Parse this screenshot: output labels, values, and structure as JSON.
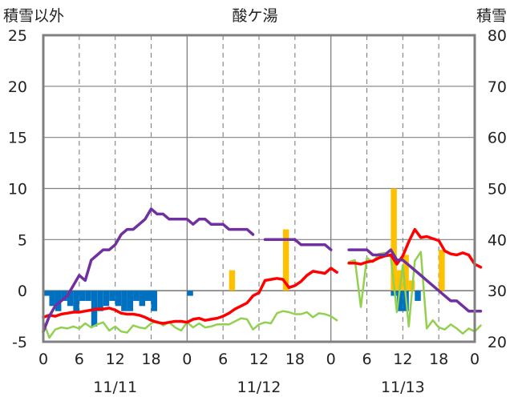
{
  "chart_data": {
    "type": "combo",
    "title": "酸ケ湯",
    "left_axis_label": "積雪以外",
    "right_axis_label": "積雪",
    "left_ylim": [
      -5,
      25
    ],
    "left_ticks": [
      "-5",
      "0",
      "5",
      "10",
      "15",
      "20",
      "25"
    ],
    "right_ylim": [
      20,
      80
    ],
    "right_ticks": [
      "20",
      "30",
      "40",
      "50",
      "60",
      "70",
      "80"
    ],
    "x_hours_range": [
      0,
      72
    ],
    "x_tick_labels": [
      "0",
      "6",
      "12",
      "18",
      "0",
      "6",
      "12",
      "18",
      "0",
      "6",
      "12",
      "18",
      "0"
    ],
    "date_labels": [
      "11/11",
      "11/12",
      "11/13"
    ],
    "grid": true,
    "colors": {
      "temperature": "#ff0000",
      "snow_depth": "#7030a0",
      "temp_diff": "#92d050",
      "precipitation": "#ffc000",
      "snow_change": "#0070c0",
      "axis": "#808080",
      "grid": "#808080"
    },
    "series": [
      {
        "key": "temperature",
        "axis": "left",
        "style": "line",
        "points": [
          [
            0,
            -2.6
          ],
          [
            1,
            -2.4
          ],
          [
            2,
            -2.5
          ],
          [
            3,
            -2.3
          ],
          [
            4,
            -2.2
          ],
          [
            5,
            -2.1
          ],
          [
            6,
            -2.1
          ],
          [
            7,
            -2.0
          ],
          [
            8,
            -1.9
          ],
          [
            9,
            -1.8
          ],
          [
            10,
            -1.8
          ],
          [
            11,
            -1.7
          ],
          [
            12,
            -1.9
          ],
          [
            13,
            -2.2
          ],
          [
            14,
            -2.3
          ],
          [
            15,
            -2.3
          ],
          [
            16,
            -2.4
          ],
          [
            17,
            -2.6
          ],
          [
            18,
            -2.9
          ],
          [
            19,
            -3.1
          ],
          [
            20,
            -3.2
          ],
          [
            21,
            -3.1
          ],
          [
            22,
            -3.0
          ],
          [
            23,
            -3.0
          ],
          [
            24,
            -3.1
          ],
          [
            25,
            -2.8
          ],
          [
            26,
            -2.7
          ],
          [
            27,
            -2.9
          ],
          [
            28,
            -2.8
          ],
          [
            29,
            -2.7
          ],
          [
            30,
            -2.5
          ],
          [
            31,
            -2.2
          ],
          [
            32,
            -1.8
          ],
          [
            33,
            -1.5
          ],
          [
            34,
            -1.2
          ],
          [
            35,
            -0.5
          ],
          [
            36,
            -0.2
          ],
          [
            37,
            1.0
          ],
          [
            38,
            1.1
          ],
          [
            39,
            1.2
          ],
          [
            40,
            1.1
          ],
          [
            41,
            0.3
          ],
          [
            42,
            0.5
          ],
          [
            43,
            0.9
          ],
          [
            44,
            1.5
          ],
          [
            45,
            1.9
          ],
          [
            46,
            1.8
          ],
          [
            47,
            1.7
          ],
          [
            48,
            2.2
          ],
          [
            49,
            1.8
          ],
          null,
          [
            51,
            2.7
          ],
          [
            52,
            2.7
          ],
          [
            53,
            2.6
          ],
          [
            54,
            2.8
          ],
          [
            55,
            2.9
          ],
          [
            56,
            3.2
          ],
          [
            57,
            3.4
          ],
          [
            58,
            3.5
          ],
          [
            59,
            2.6
          ],
          [
            60,
            3.4
          ],
          [
            61,
            4.8
          ],
          [
            62,
            6.0
          ],
          [
            63,
            5.2
          ],
          [
            64,
            5.3
          ],
          [
            65,
            5.1
          ],
          [
            66,
            4.9
          ],
          [
            67,
            3.9
          ],
          [
            68,
            3.6
          ],
          [
            69,
            3.5
          ],
          [
            70,
            3.7
          ],
          [
            71,
            3.5
          ],
          [
            72,
            2.6
          ],
          [
            73,
            2.3
          ]
        ]
      },
      {
        "key": "snow_depth",
        "axis": "right",
        "style": "line",
        "points": [
          [
            0,
            22
          ],
          [
            1,
            25
          ],
          [
            2,
            27
          ],
          [
            3,
            28
          ],
          [
            4,
            29
          ],
          [
            5,
            31
          ],
          [
            6,
            33
          ],
          [
            7,
            32
          ],
          [
            8,
            36
          ],
          [
            9,
            37
          ],
          [
            10,
            38
          ],
          [
            11,
            38
          ],
          [
            12,
            39
          ],
          [
            13,
            41
          ],
          [
            14,
            42
          ],
          [
            15,
            42
          ],
          [
            16,
            43
          ],
          [
            17,
            44
          ],
          [
            18,
            46
          ],
          [
            19,
            45
          ],
          [
            20,
            45
          ],
          [
            21,
            44
          ],
          [
            22,
            44
          ],
          [
            23,
            44
          ],
          [
            24,
            44
          ],
          [
            25,
            43
          ],
          [
            26,
            44
          ],
          [
            27,
            44
          ],
          [
            28,
            43
          ],
          [
            29,
            43
          ],
          [
            30,
            43
          ],
          [
            31,
            42
          ],
          [
            32,
            42
          ],
          [
            33,
            42
          ],
          [
            34,
            42
          ],
          [
            35,
            41
          ],
          null,
          [
            37,
            40
          ],
          [
            38,
            40
          ],
          [
            39,
            40
          ],
          [
            40,
            40
          ],
          [
            41,
            40
          ],
          [
            42,
            40
          ],
          [
            43,
            39
          ],
          [
            44,
            39
          ],
          [
            45,
            39
          ],
          [
            46,
            39
          ],
          [
            47,
            39
          ],
          [
            48,
            38
          ],
          null,
          [
            51,
            38
          ],
          [
            52,
            38
          ],
          [
            53,
            38
          ],
          [
            54,
            38
          ],
          [
            55,
            37
          ],
          [
            56,
            37
          ],
          [
            57,
            37
          ],
          [
            58,
            38
          ],
          [
            59,
            36
          ],
          [
            60,
            36
          ],
          [
            61,
            35
          ],
          [
            62,
            34
          ],
          [
            63,
            33
          ],
          [
            64,
            32
          ],
          [
            65,
            31
          ],
          [
            66,
            30
          ],
          [
            67,
            29
          ],
          [
            68,
            28
          ],
          [
            69,
            28
          ],
          [
            70,
            27
          ],
          [
            71,
            26
          ],
          [
            72,
            26
          ],
          [
            73,
            26
          ]
        ]
      },
      {
        "key": "temp_diff",
        "axis": "left",
        "style": "line",
        "points": [
          [
            0,
            -3.0
          ],
          [
            1,
            -4.6
          ],
          [
            2,
            -3.8
          ],
          [
            3,
            -3.6
          ],
          [
            4,
            -3.7
          ],
          [
            5,
            -3.5
          ],
          [
            6,
            -3.7
          ],
          [
            7,
            -3.2
          ],
          [
            8,
            -3.6
          ],
          [
            9,
            -3.3
          ],
          [
            10,
            -3.1
          ],
          [
            11,
            -3.9
          ],
          [
            12,
            -3.5
          ],
          [
            13,
            -4.0
          ],
          [
            14,
            -4.1
          ],
          [
            15,
            -3.4
          ],
          [
            16,
            -3.6
          ],
          [
            17,
            -3.7
          ],
          [
            18,
            -3.2
          ],
          [
            19,
            -3.0
          ],
          [
            20,
            -3.4
          ],
          [
            21,
            -3.1
          ],
          [
            22,
            -3.6
          ],
          [
            23,
            -3.9
          ],
          [
            24,
            -3.1
          ],
          [
            25,
            -3.6
          ],
          [
            26,
            -3.2
          ],
          [
            27,
            -3.6
          ],
          [
            28,
            -3.5
          ],
          [
            29,
            -3.3
          ],
          [
            30,
            -3.3
          ],
          [
            31,
            -3.3
          ],
          [
            32,
            -3.0
          ],
          [
            33,
            -2.7
          ],
          [
            34,
            -2.8
          ],
          [
            35,
            -3.8
          ],
          [
            36,
            -3.3
          ],
          [
            37,
            -3.1
          ],
          [
            38,
            -3.2
          ],
          [
            39,
            -2.2
          ],
          [
            40,
            -2.0
          ],
          [
            41,
            -2.1
          ],
          [
            42,
            -2.3
          ],
          [
            43,
            -2.3
          ],
          [
            44,
            -2.1
          ],
          [
            45,
            -2.6
          ],
          [
            46,
            -2.2
          ],
          [
            47,
            -2.3
          ],
          [
            48,
            -2.5
          ],
          [
            49,
            -2.9
          ],
          null,
          [
            51,
            2.8
          ],
          [
            52,
            3.0
          ],
          [
            53,
            -1.6
          ],
          [
            54,
            3.2
          ],
          [
            55,
            2.8
          ],
          [
            56,
            3.6
          ],
          [
            57,
            3.7
          ],
          [
            58,
            3.3
          ],
          [
            59,
            -2.1
          ],
          [
            60,
            2.5
          ],
          [
            61,
            -3.5
          ],
          [
            62,
            2.9
          ],
          [
            63,
            3.8
          ],
          [
            64,
            -3.7
          ],
          [
            65,
            -2.9
          ],
          [
            66,
            -3.6
          ],
          [
            67,
            -3.8
          ],
          [
            68,
            -3.3
          ],
          [
            69,
            -3.7
          ],
          [
            70,
            -4.2
          ],
          [
            71,
            -3.7
          ],
          [
            72,
            -4.0
          ],
          [
            73,
            -3.4
          ]
        ]
      },
      {
        "key": "precipitation",
        "axis": "left",
        "style": "bar",
        "bars": [
          [
            31,
            2.0
          ],
          [
            40,
            6.0
          ],
          [
            58,
            10.0
          ],
          [
            59,
            2.0
          ],
          [
            60,
            3.5
          ],
          [
            61,
            1.0
          ],
          [
            66,
            4.0
          ]
        ]
      },
      {
        "key": "snow_change",
        "axis": "left",
        "style": "bar",
        "bars": [
          [
            0,
            -0.5
          ],
          [
            1,
            -1.5
          ],
          [
            2,
            -2.0
          ],
          [
            3,
            -1.0
          ],
          [
            4,
            -1.5
          ],
          [
            5,
            -2.0
          ],
          [
            6,
            -1.0
          ],
          [
            7,
            -1.0
          ],
          [
            8,
            -3.5
          ],
          [
            9,
            -2.0
          ],
          [
            10,
            -1.5
          ],
          [
            11,
            -1.0
          ],
          [
            12,
            -1.5
          ],
          [
            13,
            -2.0
          ],
          [
            14,
            -2.0
          ],
          [
            15,
            -1.0
          ],
          [
            16,
            -1.5
          ],
          [
            17,
            -1.0
          ],
          [
            18,
            -2.0
          ],
          [
            24,
            -0.5
          ],
          [
            58,
            -0.5
          ],
          [
            59,
            -2.0
          ],
          [
            60,
            -2.0
          ],
          [
            62,
            -1.0
          ]
        ]
      }
    ]
  }
}
